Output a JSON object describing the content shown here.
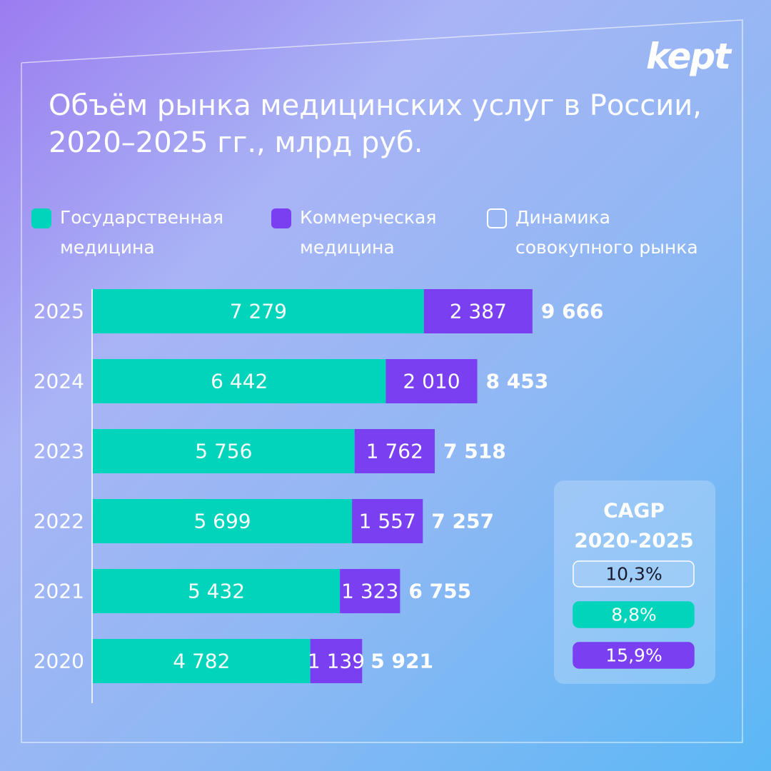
{
  "chart_data": {
    "type": "bar",
    "orientation": "horizontal",
    "stacked": true,
    "brand": "kept",
    "title": "Объём рынка медицинских услуг в России, 2020–2025 гг., млрд руб.",
    "categories": [
      "2025",
      "2024",
      "2023",
      "2022",
      "2021",
      "2020"
    ],
    "series": [
      {
        "name": "Государственная медицина",
        "color": "#00d4bb",
        "values": [
          7279,
          6442,
          5756,
          5699,
          5432,
          4782
        ],
        "value_labels": [
          "7 279",
          "6 442",
          "5 756",
          "5 699",
          "5 432",
          "4 782"
        ]
      },
      {
        "name": "Коммерческая медицина",
        "color": "#7b3ff2",
        "values": [
          2387,
          2010,
          1762,
          1557,
          1323,
          1139
        ],
        "value_labels": [
          "2 387",
          "2 010",
          "1 762",
          "1 557",
          "1 323",
          "1 139"
        ]
      }
    ],
    "totals": {
      "name": "Динамика совокупного рынка",
      "color": "#ffffff",
      "values": [
        9666,
        8453,
        7518,
        7257,
        6755,
        5921
      ],
      "value_labels": [
        "9 666",
        "8 453",
        "7 518",
        "7 257",
        "6 755",
        "5 921"
      ]
    },
    "xlim": [
      0,
      14000
    ],
    "cagr": {
      "title": "CAGP",
      "period": "2020-2025",
      "values": [
        10.3,
        8.8,
        15.9
      ],
      "value_labels": [
        "10,3%",
        "8,8%",
        "15,9%"
      ],
      "colors": [
        "#ffffff",
        "#00d4bb",
        "#7b3ff2"
      ]
    }
  }
}
